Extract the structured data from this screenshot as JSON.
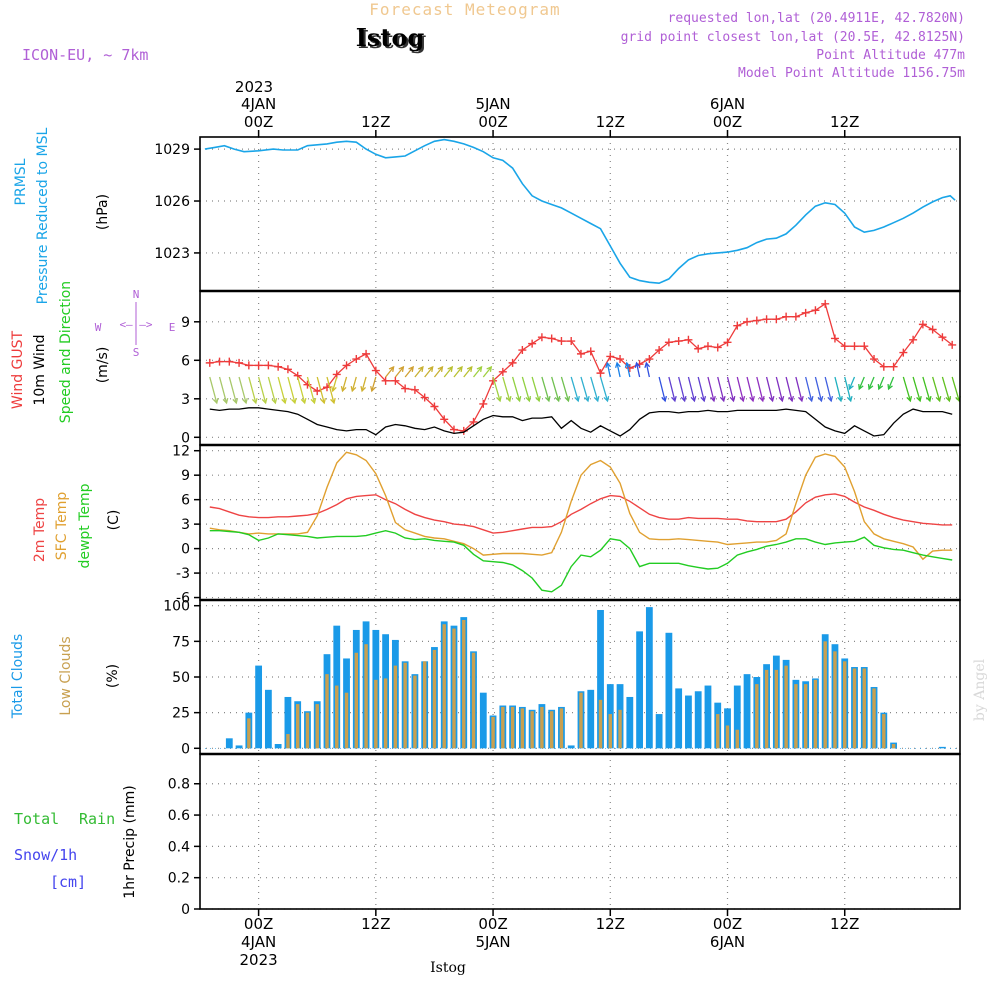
{
  "header": {
    "title_top": "Forecast Meteogram",
    "station": "Istog",
    "model": "ICON-EU, ~ 7km",
    "requested": "requested lon,lat (20.4911E, 42.7820N)",
    "gridpoint": "grid point closest lon,lat (20.5E, 42.8125N)",
    "point_alt": "Point Altitude 477m",
    "model_alt": "Model Point Altitude 1156.75m"
  },
  "top_axis": {
    "year": "2023",
    "ticks": [
      {
        "t": 0,
        "lines": [
          "4JAN",
          "00Z"
        ]
      },
      {
        "t": 12,
        "lines": [
          "12Z"
        ]
      },
      {
        "t": 24,
        "lines": [
          "5JAN",
          "00Z"
        ]
      },
      {
        "t": 36,
        "lines": [
          "12Z"
        ]
      },
      {
        "t": 48,
        "lines": [
          "6JAN",
          "00Z"
        ]
      },
      {
        "t": 60,
        "lines": [
          "12Z"
        ]
      }
    ]
  },
  "bottom_axis": {
    "ticks": [
      {
        "t": 0,
        "lines": [
          "00Z",
          "4JAN",
          "2023"
        ]
      },
      {
        "t": 12,
        "lines": [
          "12Z"
        ]
      },
      {
        "t": 24,
        "lines": [
          "00Z",
          "5JAN"
        ]
      },
      {
        "t": 36,
        "lines": [
          "12Z"
        ]
      },
      {
        "t": 48,
        "lines": [
          "00Z",
          "6JAN"
        ]
      },
      {
        "t": 60,
        "lines": [
          "12Z"
        ]
      }
    ],
    "footer": "Istog"
  },
  "watermark": "by Angel",
  "colors": {
    "pressure": "#1aa5e8",
    "gust": "#ee3b3b",
    "wind": "#000000",
    "temp2m": "#ee4444",
    "sfc": "#e0a030",
    "dewpt": "#22cc22",
    "total_clouds": "#1a9ae8",
    "low_clouds": "#c8a050",
    "rain": "#33bb33",
    "snow": "#4444ee",
    "purple": "#b05fd6",
    "orange_title": "#f0c890"
  },
  "chart_data": [
    {
      "type": "line",
      "panel": "pressure",
      "labels": [
        "PRMSL",
        "Pressure Reduced to MSL"
      ],
      "units": "(hPa)",
      "yticks": [
        "1023",
        "1026",
        "1029"
      ],
      "ylim": [
        1020.8,
        1029.7
      ],
      "x": [
        -5.5,
        -4.5,
        -3.5,
        -2.5,
        -1.5,
        0,
        1.5,
        2.5,
        4,
        5,
        6,
        7,
        8,
        9,
        10,
        11,
        12,
        13,
        14,
        15,
        16,
        17,
        18,
        19,
        20,
        21,
        22,
        23,
        24,
        25,
        26,
        27,
        28,
        29,
        30,
        31,
        32,
        33,
        34,
        35,
        36,
        37,
        38,
        39,
        40,
        41,
        42,
        43,
        44,
        45,
        46,
        47,
        48,
        49,
        50,
        51,
        52,
        53,
        54,
        55,
        56,
        57,
        58,
        59,
        60,
        61,
        62,
        63,
        64,
        65,
        66,
        67,
        68,
        69,
        70,
        70.8,
        71.3
      ],
      "series": [
        {
          "name": "PRMSL",
          "values": [
            1029,
            1029.1,
            1029.2,
            1029,
            1028.85,
            1028.9,
            1029,
            1028.95,
            1028.95,
            1029.2,
            1029.25,
            1029.3,
            1029.4,
            1029.45,
            1029.4,
            1029,
            1028.7,
            1028.5,
            1028.55,
            1028.6,
            1028.9,
            1029.2,
            1029.45,
            1029.55,
            1029.45,
            1029.3,
            1029.1,
            1028.85,
            1028.5,
            1028.35,
            1027.9,
            1027,
            1026.3,
            1026,
            1025.8,
            1025.6,
            1025.3,
            1025,
            1024.7,
            1024.4,
            1023.4,
            1022.4,
            1021.6,
            1021.4,
            1021.3,
            1021.25,
            1021.5,
            1022.1,
            1022.6,
            1022.85,
            1022.95,
            1023,
            1023.05,
            1023.15,
            1023.3,
            1023.6,
            1023.8,
            1023.85,
            1024.1,
            1024.6,
            1025.2,
            1025.7,
            1025.9,
            1025.8,
            1025.3,
            1024.5,
            1024.2,
            1024.3,
            1024.5,
            1024.75,
            1025,
            1025.3,
            1025.65,
            1025.95,
            1026.2,
            1026.3,
            1026.05
          ]
        }
      ]
    },
    {
      "type": "line",
      "panel": "wind",
      "labels": [
        "Wind GUST",
        "10m Wind",
        "Speed and Direction"
      ],
      "units": "(m/s)",
      "yticks": [
        "0",
        "3",
        "6",
        "9"
      ],
      "ylim": [
        -0.6,
        11.4
      ],
      "compass": {
        "n": "N",
        "e": "E",
        "s": "S",
        "w": "W"
      },
      "x": [
        -5,
        -4,
        -3,
        -2,
        -1,
        0,
        1,
        2,
        3,
        4,
        5,
        6,
        7,
        8,
        9,
        10,
        11,
        12,
        13,
        14,
        15,
        16,
        17,
        18,
        19,
        20,
        21,
        22,
        23,
        24,
        25,
        26,
        27,
        28,
        29,
        30,
        31,
        32,
        33,
        34,
        35,
        36,
        37,
        38,
        39,
        40,
        41,
        42,
        43,
        44,
        45,
        46,
        47,
        48,
        49,
        50,
        51,
        52,
        53,
        54,
        55,
        56,
        57,
        58,
        59,
        60,
        61,
        62,
        63,
        64,
        65,
        66,
        67,
        68,
        69,
        70,
        71
      ],
      "series": [
        {
          "name": "Wind GUST",
          "values": [
            5.8,
            5.9,
            5.9,
            5.8,
            5.6,
            5.6,
            5.6,
            5.5,
            5.3,
            4.8,
            4.1,
            3.6,
            3.9,
            4.9,
            5.6,
            6.1,
            6.5,
            5.2,
            4.4,
            4.4,
            3.8,
            3.7,
            3.1,
            2.4,
            1.4,
            0.6,
            0.5,
            1.2,
            2.6,
            4.4,
            5.1,
            5.8,
            6.8,
            7.3,
            7.8,
            7.7,
            7.5,
            7.5,
            6.5,
            6.7,
            5.0,
            6.3,
            6.1,
            5.4,
            5.7,
            6.1,
            6.8,
            7.4,
            7.5,
            7.6,
            6.9,
            7.1,
            7.0,
            7.4,
            8.7,
            9.0,
            9.1,
            9.2,
            9.2,
            9.4,
            9.4,
            9.7,
            9.9,
            10.4,
            7.7,
            7.1,
            7.1,
            7.1,
            6.1,
            5.5,
            5.5,
            6.6,
            7.6,
            8.8,
            8.4,
            7.8,
            7.2
          ]
        },
        {
          "name": "10m Wind",
          "values": [
            2.2,
            2.1,
            2.2,
            2.2,
            2.3,
            2.3,
            2.2,
            2.1,
            2.0,
            1.8,
            1.4,
            1.0,
            0.8,
            0.6,
            0.5,
            0.6,
            0.6,
            0.2,
            0.8,
            1.0,
            0.9,
            0.7,
            0.6,
            0.8,
            0.5,
            0.3,
            0.4,
            0.9,
            1.4,
            1.7,
            1.6,
            1.6,
            1.3,
            1.5,
            1.5,
            1.6,
            0.7,
            1.3,
            0.7,
            0.4,
            0.9,
            0.5,
            0.1,
            0.6,
            1.4,
            1.9,
            2.0,
            2.0,
            1.9,
            2.0,
            2.0,
            2.1,
            2.0,
            2.0,
            2.1,
            2.1,
            2.1,
            2.1,
            2.1,
            2.2,
            2.1,
            2.0,
            1.4,
            0.8,
            0.5,
            0.3,
            0.9,
            0.5,
            0.1,
            0.2,
            1.1,
            1.8,
            2.2,
            2.0,
            2.0,
            2.0,
            1.8
          ]
        }
      ],
      "arrow_colors": [
        "#a8c86a",
        "#b8d04a",
        "#c8d03a",
        "#d0c030",
        "#d0b030",
        "#d0a030",
        "#c8b030",
        "#b8c030",
        "#a0d040",
        "#90d040",
        "#70c050",
        "#30b0d0",
        "#1a80e8",
        "#3050e0",
        "#6040d0",
        "#8030c0",
        "#9030c0",
        "#8030c0",
        "#4060e0",
        "#20b0c0",
        "#30c040",
        "#40c020",
        "#60c020"
      ]
    },
    {
      "type": "line",
      "panel": "temperature",
      "labels": [
        "2m Temp",
        "SFC Temp",
        "dewpt Temp"
      ],
      "units": "(C)",
      "yticks": [
        "-6",
        "-3",
        "0",
        "3",
        "6",
        "9",
        "12"
      ],
      "ylim": [
        -6.3,
        12.7
      ],
      "x": [
        -5,
        -4,
        -3,
        -2,
        -1,
        0,
        1,
        2,
        3,
        4,
        5,
        6,
        7,
        8,
        9,
        10,
        11,
        12,
        13,
        14,
        15,
        16,
        17,
        18,
        19,
        20,
        21,
        22,
        23,
        24,
        25,
        26,
        27,
        28,
        29,
        30,
        31,
        32,
        33,
        34,
        35,
        36,
        37,
        38,
        39,
        40,
        41,
        42,
        43,
        44,
        45,
        46,
        47,
        48,
        49,
        50,
        51,
        52,
        53,
        54,
        55,
        56,
        57,
        58,
        59,
        60,
        61,
        62,
        63,
        64,
        65,
        66,
        67,
        68,
        69,
        70,
        71
      ],
      "series": [
        {
          "name": "2m Temp",
          "values": [
            5.1,
            4.9,
            4.5,
            4.1,
            3.9,
            3.8,
            3.8,
            3.9,
            3.9,
            4.0,
            4.1,
            4.3,
            4.8,
            5.4,
            6.1,
            6.4,
            6.5,
            6.6,
            6.0,
            5.5,
            4.8,
            4.2,
            3.8,
            3.5,
            3.3,
            3.0,
            2.9,
            2.7,
            2.3,
            1.9,
            2.0,
            2.2,
            2.4,
            2.6,
            2.6,
            2.7,
            3.3,
            4.2,
            4.8,
            5.5,
            6.1,
            6.5,
            6.4,
            5.8,
            5.0,
            4.2,
            3.8,
            3.6,
            3.6,
            3.8,
            3.7,
            3.7,
            3.7,
            3.6,
            3.6,
            3.4,
            3.3,
            3.3,
            3.3,
            3.6,
            4.5,
            5.6,
            6.3,
            6.6,
            6.7,
            6.4,
            5.7,
            5.1,
            4.7,
            4.2,
            3.8,
            3.5,
            3.3,
            3.1,
            3.0,
            2.9,
            2.9
          ]
        },
        {
          "name": "SFC Temp",
          "values": [
            2.5,
            2.3,
            2.2,
            2.0,
            1.8,
            1.9,
            1.8,
            1.8,
            1.8,
            1.8,
            2.0,
            4.0,
            7.5,
            10.5,
            11.8,
            11.5,
            10.8,
            9.2,
            6.5,
            3.2,
            2.3,
            1.9,
            1.5,
            1.3,
            1.2,
            0.9,
            0.6,
            0.0,
            -0.8,
            -0.7,
            -0.6,
            -0.6,
            -0.6,
            -0.7,
            -0.8,
            -0.5,
            2.0,
            5.8,
            9.0,
            10.3,
            10.8,
            10.0,
            8.0,
            4.3,
            2.0,
            1.2,
            1.1,
            1.1,
            1.2,
            1.1,
            1.0,
            0.9,
            0.8,
            0.5,
            0.6,
            0.7,
            0.8,
            0.8,
            1.0,
            1.8,
            5.5,
            9.0,
            11.2,
            11.6,
            11.3,
            10.0,
            7.0,
            3.3,
            1.8,
            1.2,
            0.9,
            0.6,
            0.2,
            -1.3,
            -0.3,
            -0.2,
            -0.2
          ]
        },
        {
          "name": "dewpt Temp",
          "values": [
            2.2,
            2.2,
            2.1,
            2.0,
            1.7,
            1.0,
            1.3,
            1.8,
            1.7,
            1.6,
            1.5,
            1.3,
            1.4,
            1.5,
            1.5,
            1.5,
            1.6,
            1.9,
            2.2,
            1.9,
            1.3,
            1.1,
            1.2,
            1.0,
            0.9,
            0.8,
            0.4,
            -0.7,
            -1.5,
            -1.6,
            -1.7,
            -2.0,
            -2.7,
            -3.6,
            -5.1,
            -5.3,
            -4.5,
            -2.2,
            -0.8,
            -1.0,
            -0.2,
            1.2,
            1.0,
            0.0,
            -2.2,
            -1.8,
            -1.8,
            -1.8,
            -1.8,
            -2.1,
            -2.3,
            -2.5,
            -2.4,
            -1.8,
            -0.8,
            -0.4,
            -0.1,
            0.3,
            0.5,
            0.8,
            1.2,
            1.2,
            0.8,
            0.5,
            0.7,
            0.8,
            0.9,
            1.4,
            0.4,
            0.1,
            -0.1,
            -0.2,
            -0.5,
            -0.8,
            -1.0,
            -1.2,
            -1.4
          ]
        }
      ]
    },
    {
      "type": "bar",
      "panel": "clouds",
      "labels": [
        "Total Clouds",
        "Low Clouds"
      ],
      "units": "(%)",
      "yticks": [
        "0",
        "25",
        "50",
        "75",
        "100"
      ],
      "ylim": [
        -4,
        104
      ],
      "x": [
        -5,
        -4,
        -3,
        -2,
        -1,
        0,
        1,
        2,
        3,
        4,
        5,
        6,
        7,
        8,
        9,
        10,
        11,
        12,
        13,
        14,
        15,
        16,
        17,
        18,
        19,
        20,
        21,
        22,
        23,
        24,
        25,
        26,
        27,
        28,
        29,
        30,
        31,
        32,
        33,
        34,
        35,
        36,
        37,
        38,
        39,
        40,
        41,
        42,
        43,
        44,
        45,
        46,
        47,
        48,
        49,
        50,
        51,
        52,
        53,
        54,
        55,
        56,
        57,
        58,
        59,
        60,
        61,
        62,
        63,
        64,
        65,
        66,
        67,
        68,
        69,
        70,
        71
      ],
      "series": [
        {
          "name": "Total Clouds",
          "values": [
            0,
            0,
            7,
            2,
            25,
            58,
            41,
            3,
            36,
            33,
            26,
            33,
            66,
            86,
            63,
            83,
            89,
            83,
            80,
            76,
            61,
            52,
            61,
            71,
            89,
            86,
            92,
            68,
            39,
            23,
            30,
            30,
            29,
            27,
            31,
            27,
            29,
            2,
            40,
            41,
            97,
            45,
            45,
            36,
            82,
            99,
            24,
            81,
            42,
            37,
            40,
            44,
            32,
            28,
            44,
            52,
            50,
            59,
            65,
            62,
            48,
            47,
            49,
            80,
            73,
            63,
            57,
            57,
            43,
            25,
            4,
            0,
            0,
            0,
            0,
            1,
            0
          ]
        },
        {
          "name": "Low Clouds",
          "values": [
            0,
            0,
            0,
            0,
            21,
            0,
            0,
            0,
            10,
            31,
            25,
            31,
            52,
            44,
            39,
            67,
            73,
            48,
            49,
            58,
            60,
            51,
            61,
            69,
            87,
            84,
            90,
            67,
            0,
            22,
            29,
            29,
            28,
            26,
            29,
            26,
            28,
            0,
            39,
            0,
            34,
            24,
            27,
            0,
            0,
            0,
            0,
            0,
            0,
            0,
            0,
            0,
            24,
            16,
            13,
            0,
            45,
            55,
            55,
            58,
            45,
            45,
            48,
            75,
            68,
            61,
            56,
            56,
            42,
            24,
            3,
            0,
            0,
            0,
            0,
            0,
            0
          ]
        }
      ]
    },
    {
      "type": "bar",
      "panel": "precip",
      "labels": [
        "1hr Precip (mm)"
      ],
      "legend": {
        "total": "Total",
        "rain": "Rain",
        "snow": "Snow/1h",
        "cm": "[cm]"
      },
      "yticks": [
        "0",
        "0.2",
        "0.4",
        "0.6",
        "0.8"
      ],
      "ylim": [
        0,
        0.99
      ],
      "x": [],
      "series": [
        {
          "name": "Rain",
          "values": []
        }
      ]
    }
  ]
}
